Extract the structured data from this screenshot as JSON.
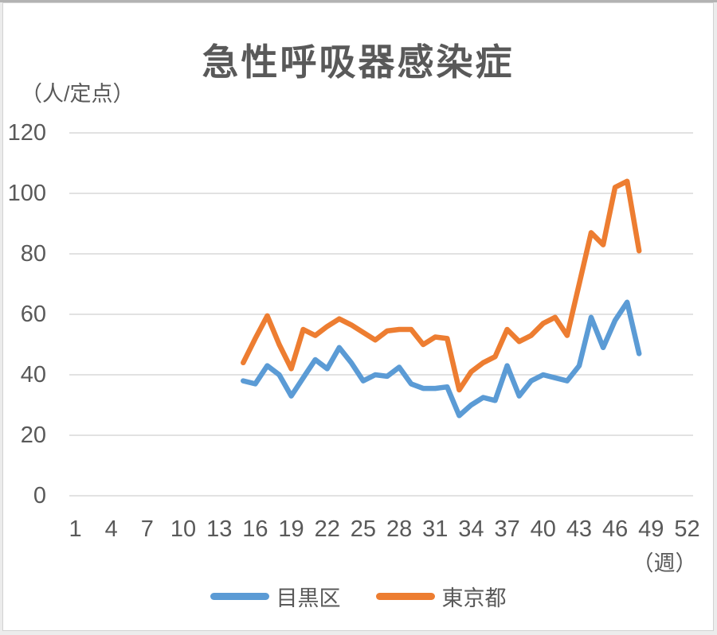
{
  "chart": {
    "text_color": "#595959",
    "gridline_color": "#d9d9d9",
    "background": "#ffffff"
  },
  "chart_data": {
    "type": "line",
    "title": "急性呼吸器感染症",
    "ylabel": "（人/定点）",
    "xlabel": "（週）",
    "ylim": [
      0,
      120
    ],
    "xlim": [
      1,
      52
    ],
    "grid": "horizontal",
    "legend_position": "bottom",
    "y_ticks": [
      0,
      20,
      40,
      60,
      80,
      100,
      120
    ],
    "x_ticks": [
      1,
      4,
      7,
      10,
      13,
      16,
      19,
      22,
      25,
      28,
      31,
      34,
      37,
      40,
      43,
      46,
      49,
      52
    ],
    "x": [
      15,
      16,
      17,
      18,
      19,
      20,
      21,
      22,
      23,
      24,
      25,
      26,
      27,
      28,
      29,
      30,
      31,
      32,
      33,
      34,
      35,
      36,
      37,
      38,
      39,
      40,
      41,
      42,
      43,
      44,
      45,
      46,
      47,
      48
    ],
    "series": [
      {
        "name": "目黒区",
        "color": "#5B9BD5",
        "values": [
          38,
          37,
          43,
          40,
          33,
          39,
          45,
          42,
          49,
          44,
          38,
          40,
          39.5,
          42.5,
          37,
          35.5,
          35.5,
          36,
          26.5,
          30,
          32.5,
          31.5,
          43,
          33,
          38,
          40,
          39,
          38,
          43,
          59,
          49,
          58,
          64,
          47
        ]
      },
      {
        "name": "東京都",
        "color": "#ED7D31",
        "values": [
          44,
          52,
          59.5,
          50,
          42,
          55,
          53,
          56,
          58.5,
          56.5,
          54,
          51.5,
          54.5,
          55,
          55,
          50,
          52.5,
          52,
          35,
          41,
          44,
          46,
          55,
          51,
          53,
          57,
          59,
          53,
          70,
          87,
          83,
          102,
          104,
          81
        ]
      }
    ]
  }
}
